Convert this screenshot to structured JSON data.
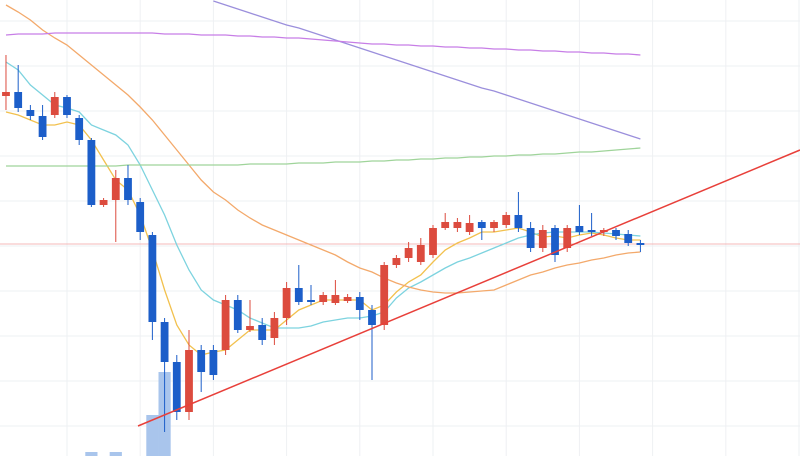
{
  "chart_data": {
    "type": "candlestick",
    "xlim": [
      -0.49,
      65.08
    ],
    "ylim": [
      0,
      456
    ],
    "xticks": [
      5,
      11,
      17,
      23,
      29,
      35,
      41,
      47,
      53,
      59,
      65
    ],
    "yticks": [
      30,
      75,
      120,
      165,
      210,
      255,
      300,
      345,
      390,
      435
    ],
    "grid": true,
    "up_color": "#dc4b3e",
    "down_color": "#1c5ec9",
    "open": [
      360,
      364,
      346,
      340,
      341,
      359,
      338,
      316,
      251,
      256,
      278,
      254,
      221,
      134,
      94,
      44,
      106,
      106,
      106,
      156,
      126,
      131,
      118,
      138,
      168,
      156,
      154,
      153,
      155,
      159,
      146,
      131,
      191,
      198,
      194,
      201,
      228,
      228,
      224,
      234,
      228,
      231,
      241,
      228,
      208,
      228,
      208,
      230,
      226,
      224,
      226,
      222,
      213
    ],
    "high": [
      401,
      391,
      351,
      351,
      364,
      361,
      341,
      318,
      258,
      286,
      291,
      258,
      224,
      138,
      101,
      126,
      111,
      111,
      161,
      161,
      156,
      138,
      144,
      174,
      191,
      171,
      164,
      176,
      162,
      164,
      151,
      194,
      201,
      214,
      218,
      231,
      243,
      238,
      241,
      236,
      236,
      244,
      264,
      234,
      231,
      231,
      231,
      251,
      243,
      228,
      228,
      226,
      216
    ],
    "low": [
      346,
      344,
      336,
      316,
      338,
      338,
      311,
      249,
      249,
      214,
      251,
      216,
      116,
      24,
      36,
      36,
      64,
      76,
      101,
      123,
      124,
      111,
      111,
      131,
      151,
      151,
      151,
      151,
      153,
      136,
      76,
      126,
      188,
      194,
      191,
      198,
      226,
      224,
      221,
      216,
      224,
      228,
      224,
      204,
      204,
      194,
      204,
      221,
      220,
      220,
      216,
      210,
      204
    ],
    "close": [
      364,
      348,
      340,
      319,
      359,
      341,
      316,
      251,
      256,
      278,
      256,
      224,
      134,
      94,
      44,
      106,
      84,
      81,
      156,
      126,
      130,
      116,
      138,
      168,
      154,
      154,
      161,
      161,
      159,
      146,
      131,
      191,
      198,
      208,
      211,
      228,
      234,
      234,
      233,
      228,
      234,
      241,
      228,
      208,
      226,
      201,
      228,
      224,
      224,
      226,
      220,
      213,
      211
    ],
    "volume": [
      null,
      null,
      null,
      null,
      null,
      null,
      null,
      4,
      null,
      4,
      null,
      null,
      41,
      84,
      null,
      null,
      null,
      null,
      null,
      null,
      null,
      null,
      null,
      null,
      null,
      null,
      null,
      null,
      null,
      null,
      null,
      null,
      null,
      null,
      null,
      null,
      null,
      null,
      null,
      null,
      null,
      null,
      null,
      null,
      null,
      null,
      null,
      null,
      null,
      null,
      null,
      null,
      null
    ],
    "volume_color": "#a9c5ec",
    "series": [
      {
        "color": "#f2c14e",
        "values": [
          344,
          341,
          336,
          331,
          331,
          334,
          331,
          316,
          296,
          276,
          266,
          241,
          206,
          166,
          131,
          111,
          101,
          104,
          106,
          116,
          126,
          126,
          126,
          136,
          146,
          151,
          156,
          156,
          156,
          156,
          146,
          151,
          164,
          174,
          181,
          194,
          206,
          213,
          218,
          224,
          224,
          226,
          228,
          224,
          219,
          220,
          218,
          221,
          223,
          221,
          218,
          216,
          216
        ]
      },
      {
        "color": "#7dd3df",
        "values": [
          394,
          386,
          371,
          361,
          351,
          348,
          344,
          331,
          326,
          321,
          311,
          291,
          266,
          241,
          211,
          186,
          166,
          156,
          151,
          146,
          138,
          133,
          128,
          128,
          128,
          130,
          134,
          136,
          138,
          138,
          140,
          144,
          158,
          168,
          174,
          181,
          188,
          194,
          198,
          203,
          208,
          213,
          218,
          221,
          223,
          224,
          224,
          224,
          224,
          223,
          222,
          221,
          220
        ]
      },
      {
        "color": "#f3a96b",
        "values": [
          451,
          444,
          436,
          426,
          418,
          411,
          401,
          391,
          381,
          371,
          361,
          349,
          336,
          321,
          306,
          291,
          276,
          264,
          256,
          246,
          238,
          231,
          226,
          221,
          216,
          211,
          206,
          201,
          194,
          188,
          184,
          178,
          173,
          169,
          166,
          164,
          163,
          163,
          164,
          165,
          166,
          171,
          176,
          181,
          184,
          188,
          191,
          193,
          196,
          198,
          201,
          203,
          204
        ]
      },
      {
        "color": "#9b8fdc",
        "values": [
          null,
          null,
          null,
          null,
          null,
          null,
          null,
          null,
          null,
          null,
          null,
          null,
          null,
          null,
          null,
          null,
          null,
          455,
          451,
          447,
          443,
          439,
          435,
          431,
          428,
          424,
          420,
          416,
          412,
          408,
          404,
          400,
          396,
          392,
          388,
          384,
          380,
          376,
          372,
          368,
          365,
          361,
          357,
          353,
          349,
          345,
          341,
          337,
          333,
          329,
          325,
          321,
          317
        ]
      },
      {
        "color": "#c77ee6",
        "values": [
          421,
          422,
          422,
          422,
          423,
          423,
          423,
          423,
          423,
          423,
          423,
          423,
          423,
          422,
          422,
          422,
          421,
          421,
          421,
          420,
          420,
          419,
          419,
          418,
          418,
          417,
          416,
          415,
          414,
          413,
          412,
          412,
          411,
          411,
          410,
          410,
          409,
          409,
          408,
          408,
          407,
          407,
          406,
          406,
          405,
          405,
          404,
          404,
          403,
          403,
          402,
          402,
          401
        ]
      },
      {
        "color": "#9fd49a",
        "values": [
          290,
          290,
          290,
          290,
          290,
          290,
          290,
          290,
          290,
          290,
          291,
          291,
          291,
          291,
          291,
          291,
          291,
          291,
          291,
          291,
          292,
          292,
          292,
          292,
          293,
          293,
          293,
          294,
          294,
          294,
          295,
          295,
          296,
          296,
          297,
          297,
          298,
          298,
          299,
          299,
          300,
          300,
          301,
          301,
          302,
          302,
          303,
          304,
          304,
          305,
          306,
          307,
          308
        ]
      }
    ],
    "trendline": {
      "color": "#e8403a",
      "x": [
        10.82,
        65.08
      ],
      "values": [
        30,
        306
      ]
    },
    "hline": {
      "color": "#f4b8b8",
      "value": 212
    }
  }
}
